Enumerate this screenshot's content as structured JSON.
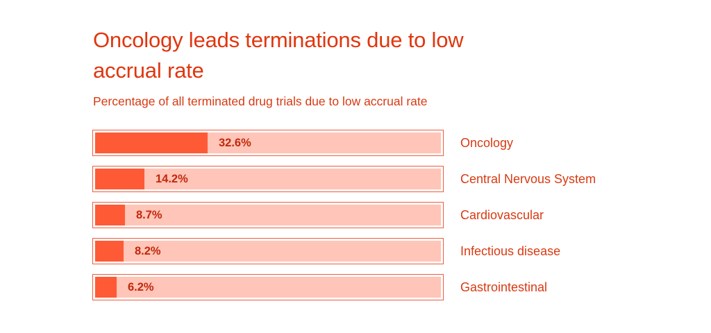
{
  "title": "Oncology leads terminations due to low accrual rate",
  "subtitle": "Percentage of all terminated drug trials due to low accrual rate",
  "colors": {
    "accent": "#e0360f",
    "bar_fill": "#ff5a36",
    "bar_track": "#ffc5b8",
    "bar_border": "#f25a3c",
    "value_text": "#c2280a"
  },
  "chart_data": {
    "type": "bar",
    "orientation": "horizontal",
    "title": "Oncology leads terminations due to low accrual rate",
    "subtitle": "Percentage of all terminated drug trials due to low accrual rate",
    "categories": [
      "Oncology",
      "Central Nervous System",
      "Cardiovascular",
      "Infectious disease",
      "Gastrointestinal"
    ],
    "values": [
      32.6,
      14.2,
      8.7,
      8.2,
      6.2
    ],
    "value_labels": [
      "32.6%",
      "14.2%",
      "8.7%",
      "8.2%",
      "6.2%"
    ],
    "unit": "%",
    "xlim": [
      0,
      100
    ],
    "grid": false,
    "legend": "none",
    "label_placement": "right"
  }
}
